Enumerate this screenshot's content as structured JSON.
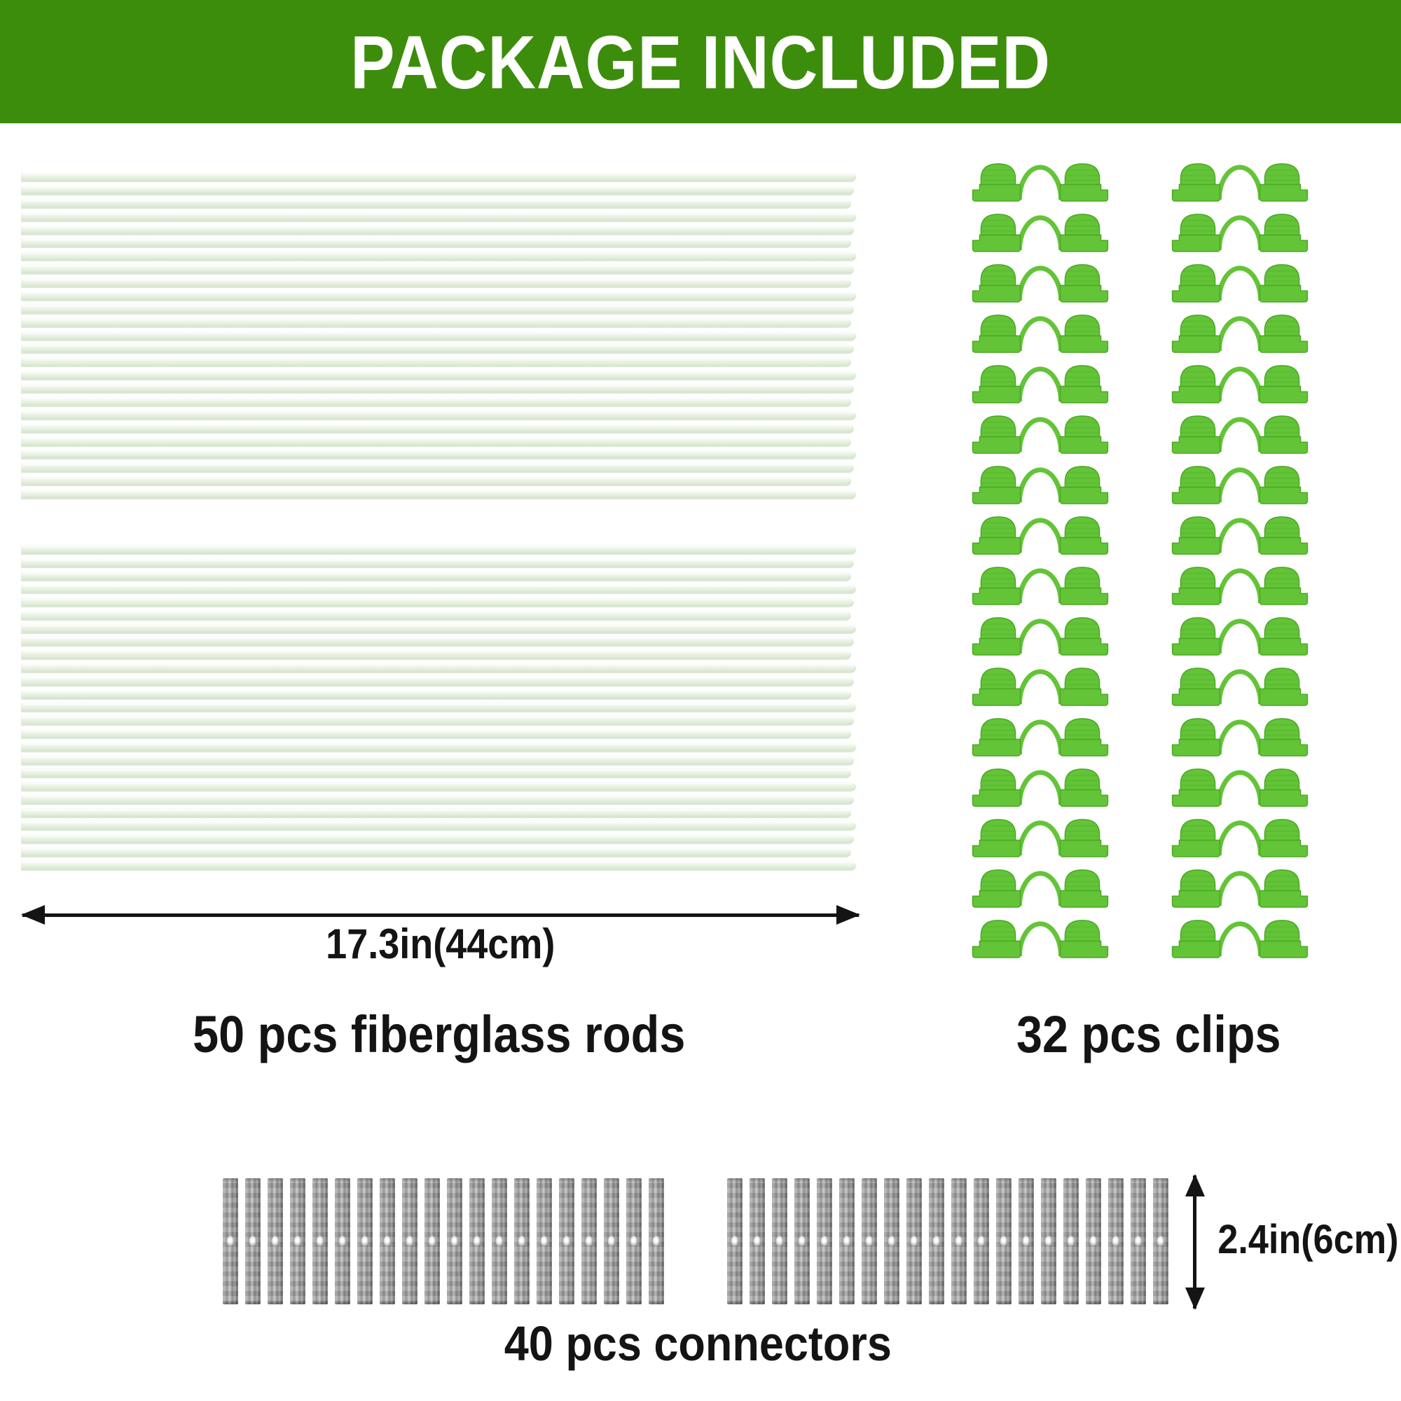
{
  "header": {
    "title": "PACKAGE INCLUDED"
  },
  "colors": {
    "banner_green": "#3c8d0b",
    "clip_green": "#64c438",
    "clip_green_dark": "#4aa823",
    "rod_tint": "#e9f2e3",
    "connector_gray": "#8d8d8d",
    "text": "#141414"
  },
  "rods": {
    "label": "50 pcs fiberglass rods",
    "count": 50,
    "stacks": 2,
    "rods_per_stack": 25,
    "length_label": "17.3in(44cm)"
  },
  "clips": {
    "label": "32 pcs clips",
    "count": 32,
    "rows": 16,
    "columns": 2
  },
  "connectors": {
    "label": "40 pcs connectors",
    "count": 40,
    "groups": 2,
    "per_group": 20,
    "height_label": "2.4in(6cm)"
  },
  "icons": {
    "width_dimension_arrow": "double-headed-horizontal-arrow",
    "height_dimension_arrow": "double-headed-vertical-arrow"
  }
}
